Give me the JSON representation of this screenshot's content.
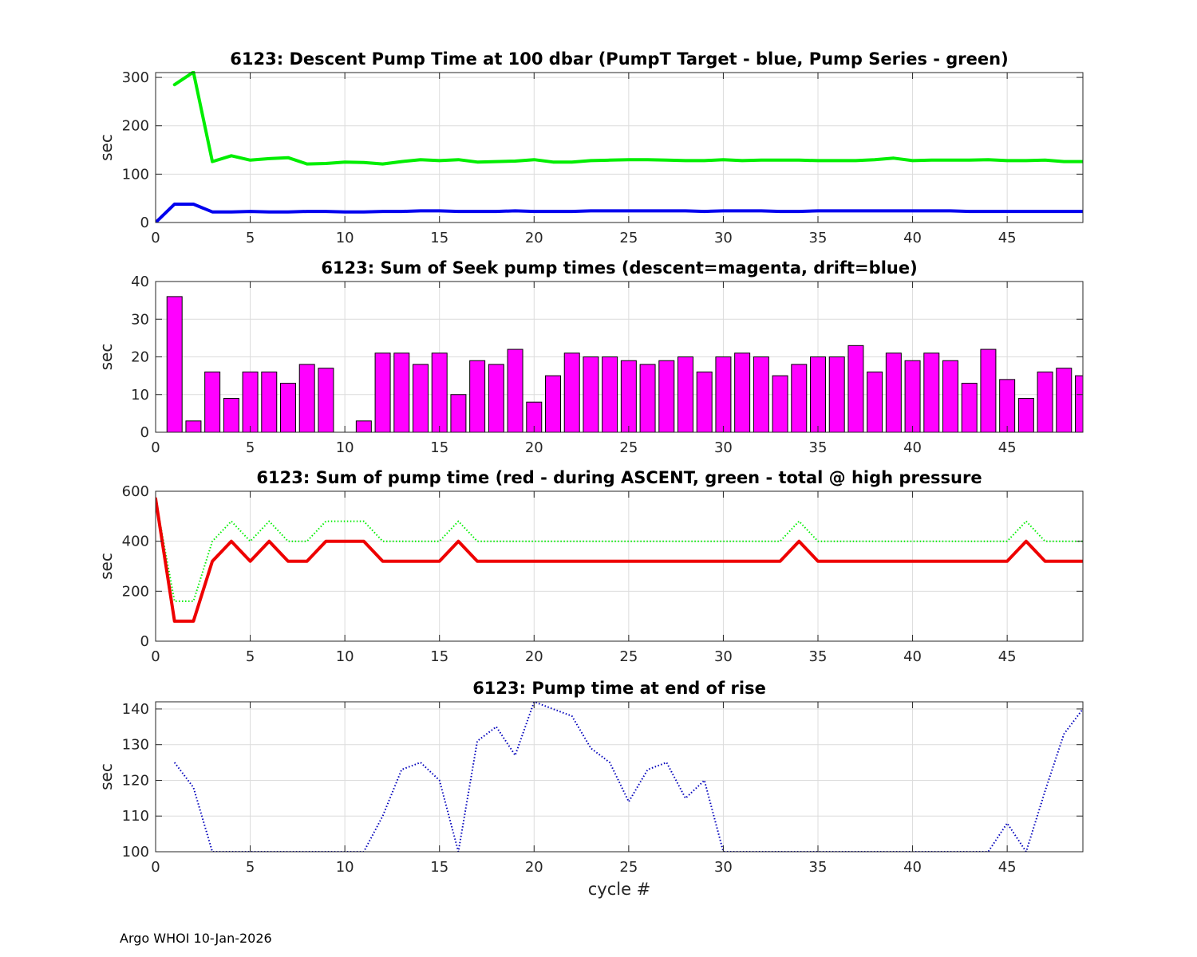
{
  "footer": "Argo WHOI 10-Jan-2026",
  "colors": {
    "blue": "#0000ee",
    "green": "#00ee00",
    "magenta": "#ff00ff",
    "red": "#ee0000",
    "dotted_blue": "#0000bb"
  },
  "chart_data": [
    {
      "type": "line",
      "title": "6123: Descent Pump Time at 100 dbar (PumpT Target - blue, Pump Series - green)",
      "xlabel": "",
      "ylabel": "sec",
      "xlim": [
        0,
        49
      ],
      "ylim": [
        0,
        310
      ],
      "xticks": [
        0,
        5,
        10,
        15,
        20,
        25,
        30,
        35,
        40,
        45
      ],
      "yticks": [
        0,
        100,
        200,
        300
      ],
      "grid": true,
      "series": [
        {
          "color": "#00ee00",
          "style": "solid",
          "width": 4,
          "x": [
            1,
            2,
            3,
            4,
            5,
            6,
            7,
            8,
            9,
            10,
            11,
            12,
            13,
            14,
            15,
            16,
            17,
            18,
            19,
            20,
            21,
            22,
            23,
            24,
            25,
            26,
            27,
            28,
            29,
            30,
            31,
            32,
            33,
            34,
            35,
            36,
            37,
            38,
            39,
            40,
            41,
            42,
            43,
            44,
            45,
            46,
            47,
            48,
            49
          ],
          "y": [
            285,
            311,
            126,
            138,
            129,
            132,
            134,
            121,
            122,
            125,
            124,
            121,
            126,
            130,
            128,
            130,
            125,
            126,
            127,
            130,
            125,
            125,
            128,
            129,
            130,
            130,
            129,
            128,
            128,
            130,
            128,
            129,
            129,
            129,
            128,
            128,
            128,
            130,
            133,
            128,
            129,
            129,
            129,
            130,
            128,
            128,
            129,
            126,
            126
          ]
        },
        {
          "color": "#0000ee",
          "style": "solid",
          "width": 4,
          "x": [
            0,
            1,
            2,
            3,
            4,
            5,
            6,
            7,
            8,
            9,
            10,
            11,
            12,
            13,
            14,
            15,
            16,
            17,
            18,
            19,
            20,
            21,
            22,
            23,
            24,
            25,
            26,
            27,
            28,
            29,
            30,
            31,
            32,
            33,
            34,
            35,
            36,
            37,
            38,
            39,
            40,
            41,
            42,
            43,
            44,
            45,
            46,
            47,
            48,
            49
          ],
          "y": [
            0,
            38,
            38,
            22,
            22,
            23,
            22,
            22,
            23,
            23,
            22,
            22,
            23,
            23,
            24,
            24,
            23,
            23,
            23,
            24,
            23,
            23,
            23,
            24,
            24,
            24,
            24,
            24,
            24,
            23,
            24,
            24,
            24,
            23,
            23,
            24,
            24,
            24,
            24,
            24,
            24,
            24,
            24,
            23,
            23,
            23,
            23,
            23,
            23,
            23
          ]
        }
      ]
    },
    {
      "type": "bar",
      "title": "6123: Sum of Seek pump times (descent=magenta, drift=blue)",
      "xlabel": "",
      "ylabel": "sec",
      "xlim": [
        0,
        49
      ],
      "ylim": [
        0,
        40
      ],
      "xticks": [
        0,
        5,
        10,
        15,
        20,
        25,
        30,
        35,
        40,
        45
      ],
      "yticks": [
        0,
        10,
        20,
        30,
        40
      ],
      "grid": true,
      "bar_color": "#ff00ff",
      "x": [
        1,
        2,
        3,
        4,
        5,
        6,
        7,
        8,
        9,
        10,
        11,
        12,
        13,
        14,
        15,
        16,
        17,
        18,
        19,
        20,
        21,
        22,
        23,
        24,
        25,
        26,
        27,
        28,
        29,
        30,
        31,
        32,
        33,
        34,
        35,
        36,
        37,
        38,
        39,
        40,
        41,
        42,
        43,
        44,
        45,
        46,
        47,
        48,
        49
      ],
      "values": [
        36,
        3,
        16,
        9,
        16,
        16,
        13,
        18,
        17,
        0,
        3,
        21,
        21,
        18,
        21,
        10,
        19,
        18,
        22,
        8,
        15,
        21,
        20,
        20,
        19,
        18,
        19,
        20,
        16,
        20,
        21,
        20,
        15,
        18,
        20,
        20,
        23,
        16,
        21,
        19,
        21,
        19,
        13,
        22,
        14,
        9,
        16,
        17,
        15
      ]
    },
    {
      "type": "line",
      "title": "6123: Sum of pump time (red - during ASCENT, green - total @ high pressure",
      "xlabel": "",
      "ylabel": "sec",
      "xlim": [
        0,
        49
      ],
      "ylim": [
        0,
        600
      ],
      "xticks": [
        0,
        5,
        10,
        15,
        20,
        25,
        30,
        35,
        40,
        45
      ],
      "yticks": [
        0,
        200,
        400,
        600
      ],
      "grid": true,
      "series": [
        {
          "color": "#00ee00",
          "style": "dotted",
          "width": 2,
          "x": [
            0,
            1,
            2,
            3,
            4,
            5,
            6,
            7,
            8,
            9,
            10,
            11,
            12,
            13,
            14,
            15,
            16,
            17,
            18,
            19,
            20,
            21,
            22,
            23,
            24,
            25,
            26,
            27,
            28,
            29,
            30,
            31,
            32,
            33,
            34,
            35,
            36,
            37,
            38,
            39,
            40,
            41,
            42,
            43,
            44,
            45,
            46,
            47,
            48,
            49
          ],
          "y": [
            570,
            160,
            160,
            400,
            480,
            400,
            480,
            400,
            400,
            480,
            480,
            480,
            400,
            400,
            400,
            400,
            480,
            400,
            400,
            400,
            400,
            400,
            400,
            400,
            400,
            400,
            400,
            400,
            400,
            400,
            400,
            400,
            400,
            400,
            480,
            400,
            400,
            400,
            400,
            400,
            400,
            400,
            400,
            400,
            400,
            400,
            480,
            400,
            400,
            400
          ]
        },
        {
          "color": "#ee0000",
          "style": "solid",
          "width": 4,
          "x": [
            0,
            1,
            2,
            3,
            4,
            5,
            6,
            7,
            8,
            9,
            10,
            11,
            12,
            13,
            14,
            15,
            16,
            17,
            18,
            19,
            20,
            21,
            22,
            23,
            24,
            25,
            26,
            27,
            28,
            29,
            30,
            31,
            32,
            33,
            34,
            35,
            36,
            37,
            38,
            39,
            40,
            41,
            42,
            43,
            44,
            45,
            46,
            47,
            48,
            49
          ],
          "y": [
            570,
            80,
            80,
            320,
            400,
            320,
            400,
            320,
            320,
            400,
            400,
            400,
            320,
            320,
            320,
            320,
            400,
            320,
            320,
            320,
            320,
            320,
            320,
            320,
            320,
            320,
            320,
            320,
            320,
            320,
            320,
            320,
            320,
            320,
            400,
            320,
            320,
            320,
            320,
            320,
            320,
            320,
            320,
            320,
            320,
            320,
            400,
            320,
            320,
            320
          ]
        }
      ]
    },
    {
      "type": "line",
      "title": "6123: Pump time at end of rise",
      "xlabel": "cycle #",
      "ylabel": "sec",
      "xlim": [
        0,
        49
      ],
      "ylim": [
        100,
        142
      ],
      "xticks": [
        0,
        5,
        10,
        15,
        20,
        25,
        30,
        35,
        40,
        45
      ],
      "yticks": [
        100,
        110,
        120,
        130,
        140
      ],
      "grid": true,
      "series": [
        {
          "color": "#0000bb",
          "style": "dotted",
          "width": 2,
          "x": [
            1,
            2,
            3,
            4,
            5,
            6,
            7,
            8,
            9,
            10,
            11,
            12,
            13,
            14,
            15,
            16,
            17,
            18,
            19,
            20,
            21,
            22,
            23,
            24,
            25,
            26,
            27,
            28,
            29,
            30,
            31,
            32,
            33,
            34,
            35,
            36,
            37,
            38,
            39,
            40,
            41,
            42,
            43,
            44,
            45,
            46,
            47,
            48,
            49
          ],
          "y": [
            125,
            118,
            100,
            100,
            100,
            100,
            100,
            100,
            100,
            100,
            100,
            110,
            123,
            125,
            120,
            100,
            131,
            135,
            127,
            142,
            140,
            138,
            129,
            125,
            114,
            123,
            125,
            115,
            120,
            100,
            100,
            100,
            100,
            100,
            100,
            100,
            100,
            100,
            100,
            100,
            100,
            100,
            100,
            100,
            108,
            100,
            117,
            133,
            140
          ]
        }
      ]
    }
  ]
}
